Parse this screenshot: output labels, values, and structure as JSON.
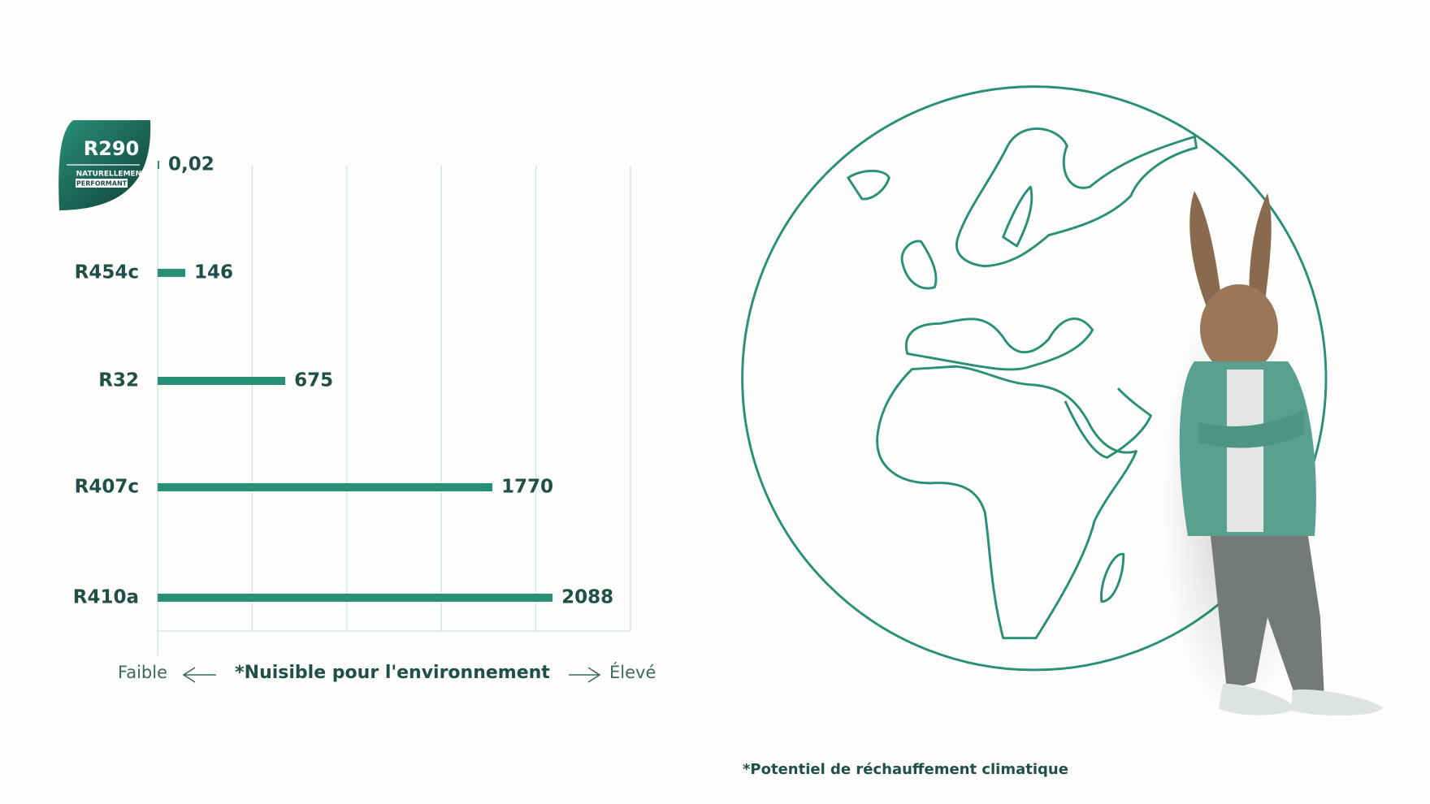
{
  "chart_data": {
    "type": "bar",
    "orientation": "horizontal",
    "categories": [
      "R290",
      "R454c",
      "R32",
      "R407c",
      "R410a"
    ],
    "values": [
      0.02,
      146,
      675,
      1770,
      2088
    ],
    "value_labels": [
      "0,02",
      "146",
      "675",
      "1770",
      "2088"
    ],
    "color": "#2a8f78",
    "xlim": [
      0,
      2500
    ],
    "xticks": [
      0,
      500,
      1000,
      1500,
      2000,
      2500
    ],
    "grid": true,
    "x_axis_low": "Faible",
    "xlabel": "*Nuisible pour l'environnement",
    "x_axis_high": "Élevé",
    "footnote": "*Potentiel de réchauffement climatique"
  },
  "badge": {
    "line1": "NATURELLEMENT",
    "line2": "PERFORMANT"
  }
}
